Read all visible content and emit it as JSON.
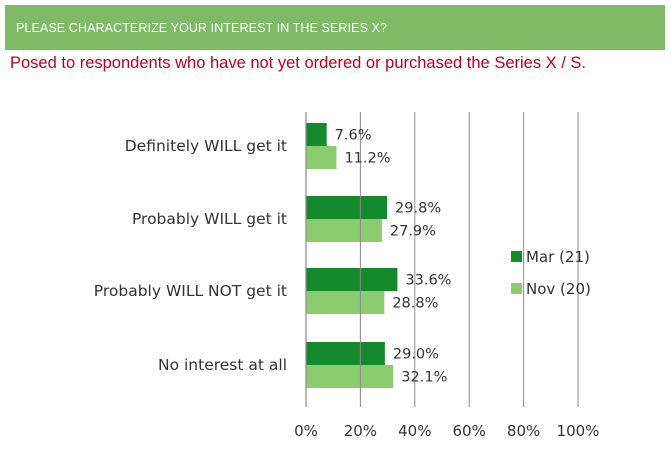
{
  "header": {
    "title": "PLEASE CHARACTERIZE YOUR INTEREST IN THE SERIES X?"
  },
  "subtitle": "Posed to respondents who have not yet ordered or purchased the Series X / S.",
  "colors": {
    "header_bg": "#7fba66",
    "subtitle_text": "#c0001a",
    "mar21": "#148a2c",
    "nov20": "#8ccc70",
    "gridline": "#8a8a8a"
  },
  "chart_data": {
    "type": "bar",
    "orientation": "horizontal",
    "categories": [
      "Definitely WILL get it",
      "Probably WILL get it",
      "Probably WILL NOT get it",
      "No interest at all"
    ],
    "series": [
      {
        "name": "Mar (21)",
        "values": [
          7.6,
          29.8,
          33.6,
          29.0
        ],
        "labels": [
          "7.6%",
          "29.8%",
          "33.6%",
          "29.0%"
        ]
      },
      {
        "name": "Nov (20)",
        "values": [
          11.2,
          27.9,
          28.8,
          32.1
        ],
        "labels": [
          "11.2%",
          "27.9%",
          "28.8%",
          "32.1%"
        ]
      }
    ],
    "xlim": [
      0,
      100
    ],
    "xticks": [
      0,
      20,
      40,
      60,
      80,
      100
    ],
    "xtick_labels": [
      "0%",
      "20%",
      "40%",
      "60%",
      "80%",
      "100%"
    ],
    "grid": "vertical",
    "legend_position": "right"
  }
}
